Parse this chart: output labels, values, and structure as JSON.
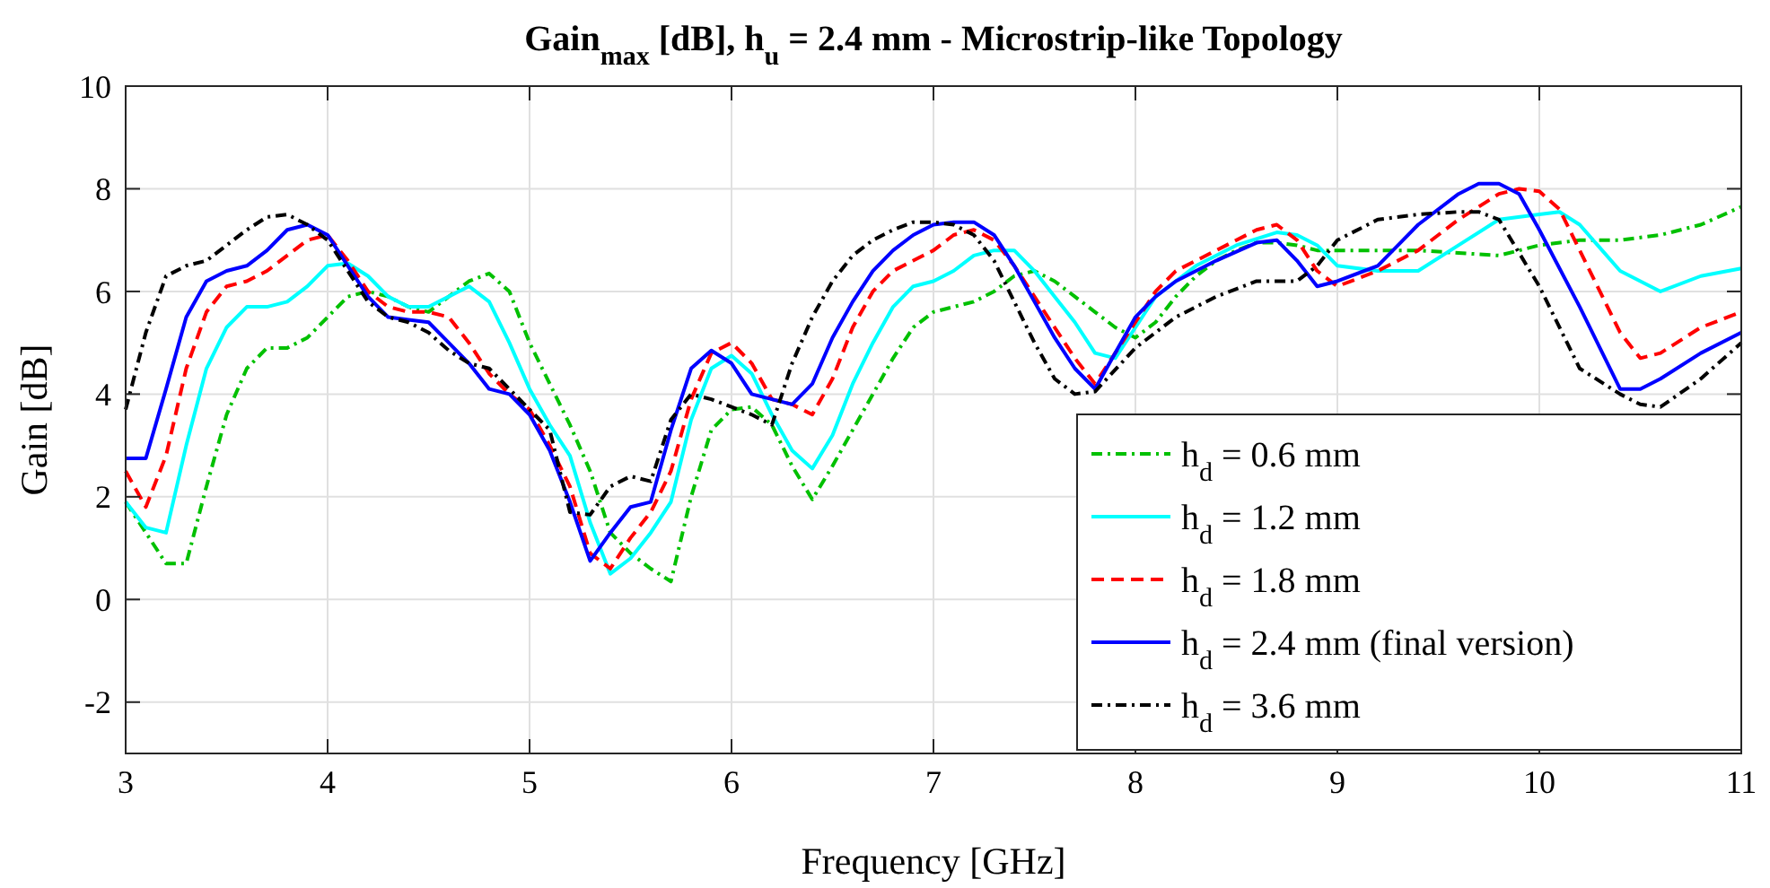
{
  "chart_data": {
    "type": "line",
    "title": "Gain$_{max}$ [dB], h$_{u}$ = 2.4 mm - Microstrip-like Topology",
    "xlabel": "Frequency [GHz]",
    "ylabel": "Gain [dB]",
    "xlim": [
      3,
      11
    ],
    "xticks": [
      3,
      4,
      5,
      6,
      7,
      8,
      9,
      10,
      11
    ],
    "ylim": [
      -3,
      10
    ],
    "yticks": [
      -2,
      0,
      2,
      4,
      6,
      8,
      10
    ],
    "grid": true,
    "legend": "bottom right",
    "marker": "none",
    "series": [
      {
        "name": "h$_{d}$ = 0.6 mm",
        "color": "#00c000",
        "line_style": "dashdot",
        "x": [
          3.0,
          3.1,
          3.2,
          3.3,
          3.4,
          3.5,
          3.6,
          3.7,
          3.8,
          3.9,
          4.0,
          4.1,
          4.2,
          4.3,
          4.4,
          4.5,
          4.6,
          4.7,
          4.8,
          4.9,
          5.0,
          5.1,
          5.2,
          5.3,
          5.4,
          5.5,
          5.6,
          5.7,
          5.8,
          5.9,
          6.0,
          6.1,
          6.2,
          6.3,
          6.4,
          6.5,
          6.6,
          6.7,
          6.8,
          6.9,
          7.0,
          7.1,
          7.2,
          7.3,
          7.4,
          7.5,
          7.6,
          7.7,
          7.8,
          7.9,
          8.0,
          8.1,
          8.2,
          8.3,
          8.4,
          8.5,
          8.6,
          8.7,
          8.8,
          8.9,
          9.0,
          9.2,
          9.4,
          9.6,
          9.8,
          10.0,
          10.2,
          10.4,
          10.6,
          10.8,
          11.0
        ],
        "values": [
          1.9,
          1.3,
          0.7,
          0.7,
          2.2,
          3.6,
          4.5,
          4.9,
          4.9,
          5.1,
          5.5,
          5.9,
          6.0,
          5.9,
          5.7,
          5.6,
          5.9,
          6.2,
          6.35,
          6.0,
          5.0,
          4.2,
          3.4,
          2.5,
          1.3,
          0.9,
          0.6,
          0.35,
          2.0,
          3.3,
          3.7,
          3.75,
          3.4,
          2.6,
          1.95,
          2.6,
          3.3,
          4.0,
          4.7,
          5.3,
          5.6,
          5.7,
          5.8,
          6.0,
          6.3,
          6.4,
          6.2,
          5.9,
          5.6,
          5.3,
          5.1,
          5.4,
          5.9,
          6.3,
          6.6,
          6.8,
          6.95,
          6.95,
          6.9,
          6.8,
          6.8,
          6.8,
          6.8,
          6.75,
          6.7,
          6.9,
          7.0,
          7.0,
          7.1,
          7.3,
          7.65
        ]
      },
      {
        "name": "h$_{d}$ = 1.2 mm",
        "color": "#00ffff",
        "line_style": "solid",
        "x": [
          3.0,
          3.1,
          3.2,
          3.3,
          3.4,
          3.5,
          3.6,
          3.7,
          3.8,
          3.9,
          4.0,
          4.1,
          4.2,
          4.3,
          4.4,
          4.5,
          4.6,
          4.7,
          4.8,
          4.9,
          5.0,
          5.1,
          5.2,
          5.3,
          5.4,
          5.5,
          5.6,
          5.7,
          5.8,
          5.9,
          6.0,
          6.1,
          6.2,
          6.3,
          6.4,
          6.5,
          6.6,
          6.7,
          6.8,
          6.9,
          7.0,
          7.1,
          7.2,
          7.3,
          7.4,
          7.5,
          7.6,
          7.7,
          7.8,
          7.9,
          8.0,
          8.1,
          8.3,
          8.5,
          8.7,
          8.8,
          8.9,
          9.0,
          9.2,
          9.4,
          9.6,
          9.8,
          10.0,
          10.1,
          10.2,
          10.4,
          10.6,
          10.8,
          11.0
        ],
        "values": [
          1.9,
          1.4,
          1.3,
          3.0,
          4.5,
          5.3,
          5.7,
          5.7,
          5.8,
          6.1,
          6.5,
          6.55,
          6.3,
          5.9,
          5.7,
          5.7,
          5.9,
          6.1,
          5.8,
          5.0,
          4.1,
          3.4,
          2.8,
          1.5,
          0.5,
          0.8,
          1.3,
          1.9,
          3.5,
          4.5,
          4.75,
          4.4,
          3.6,
          2.9,
          2.55,
          3.2,
          4.2,
          5.0,
          5.7,
          6.1,
          6.2,
          6.4,
          6.7,
          6.8,
          6.8,
          6.4,
          5.9,
          5.4,
          4.8,
          4.7,
          5.3,
          5.9,
          6.5,
          6.9,
          7.15,
          7.1,
          6.9,
          6.5,
          6.4,
          6.4,
          6.9,
          7.4,
          7.5,
          7.55,
          7.3,
          6.4,
          6.0,
          6.3,
          6.45
        ]
      },
      {
        "name": "h$_{d}$ = 1.8 mm",
        "color": "#ff0000",
        "line_style": "dashed",
        "x": [
          3.0,
          3.1,
          3.2,
          3.3,
          3.4,
          3.5,
          3.6,
          3.7,
          3.8,
          3.9,
          4.0,
          4.1,
          4.2,
          4.3,
          4.4,
          4.5,
          4.6,
          4.7,
          4.8,
          4.9,
          5.0,
          5.1,
          5.2,
          5.3,
          5.4,
          5.5,
          5.6,
          5.7,
          5.8,
          5.9,
          6.0,
          6.1,
          6.2,
          6.3,
          6.4,
          6.5,
          6.6,
          6.7,
          6.8,
          6.9,
          7.0,
          7.1,
          7.2,
          7.3,
          7.4,
          7.5,
          7.6,
          7.7,
          7.8,
          7.9,
          8.0,
          8.1,
          8.2,
          8.4,
          8.6,
          8.7,
          8.8,
          8.9,
          9.0,
          9.2,
          9.4,
          9.6,
          9.8,
          9.9,
          10.0,
          10.1,
          10.2,
          10.4,
          10.5,
          10.6,
          10.8,
          11.0
        ],
        "values": [
          2.5,
          1.8,
          2.8,
          4.5,
          5.6,
          6.1,
          6.2,
          6.4,
          6.7,
          7.0,
          7.1,
          6.6,
          6.0,
          5.7,
          5.6,
          5.6,
          5.5,
          5.0,
          4.4,
          4.0,
          3.7,
          3.0,
          2.2,
          0.9,
          0.6,
          1.2,
          1.7,
          2.5,
          3.9,
          4.8,
          5.0,
          4.6,
          3.9,
          3.8,
          3.6,
          4.3,
          5.3,
          6.0,
          6.4,
          6.6,
          6.8,
          7.1,
          7.2,
          7.0,
          6.5,
          5.9,
          5.3,
          4.7,
          4.2,
          4.8,
          5.4,
          6.0,
          6.4,
          6.8,
          7.2,
          7.3,
          7.0,
          6.4,
          6.1,
          6.4,
          6.8,
          7.4,
          7.9,
          8.0,
          7.95,
          7.6,
          6.8,
          5.2,
          4.7,
          4.8,
          5.3,
          5.6
        ]
      },
      {
        "name": "h$_{d}$ = 2.4 mm (final version)",
        "color": "#0000ff",
        "line_style": "solid",
        "x": [
          3.0,
          3.1,
          3.2,
          3.3,
          3.4,
          3.5,
          3.6,
          3.7,
          3.8,
          3.9,
          4.0,
          4.1,
          4.2,
          4.3,
          4.4,
          4.5,
          4.6,
          4.7,
          4.8,
          4.9,
          5.0,
          5.1,
          5.2,
          5.3,
          5.4,
          5.5,
          5.6,
          5.7,
          5.8,
          5.9,
          6.0,
          6.1,
          6.2,
          6.3,
          6.4,
          6.5,
          6.6,
          6.7,
          6.8,
          6.9,
          7.0,
          7.1,
          7.2,
          7.3,
          7.4,
          7.5,
          7.6,
          7.7,
          7.8,
          7.9,
          8.0,
          8.1,
          8.2,
          8.4,
          8.6,
          8.7,
          8.8,
          8.9,
          9.0,
          9.2,
          9.4,
          9.6,
          9.7,
          9.8,
          9.9,
          10.0,
          10.2,
          10.4,
          10.5,
          10.6,
          10.8,
          11.0
        ],
        "values": [
          2.75,
          2.75,
          4.1,
          5.5,
          6.2,
          6.4,
          6.5,
          6.8,
          7.2,
          7.3,
          7.1,
          6.5,
          5.9,
          5.5,
          5.45,
          5.4,
          5.0,
          4.6,
          4.1,
          4.0,
          3.6,
          2.9,
          1.9,
          0.75,
          1.3,
          1.8,
          1.9,
          3.3,
          4.5,
          4.85,
          4.6,
          4.0,
          3.9,
          3.8,
          4.2,
          5.1,
          5.8,
          6.4,
          6.8,
          7.1,
          7.3,
          7.35,
          7.35,
          7.1,
          6.5,
          5.8,
          5.1,
          4.5,
          4.1,
          4.8,
          5.5,
          5.9,
          6.2,
          6.6,
          6.95,
          7.0,
          6.6,
          6.1,
          6.2,
          6.5,
          7.3,
          7.9,
          8.1,
          8.1,
          7.9,
          7.2,
          5.7,
          4.1,
          4.1,
          4.3,
          4.8,
          5.2
        ]
      },
      {
        "name": "h$_{d}$ = 3.6 mm",
        "color": "#000000",
        "line_style": "dashdot",
        "x": [
          3.0,
          3.1,
          3.2,
          3.3,
          3.4,
          3.5,
          3.6,
          3.7,
          3.8,
          3.9,
          4.0,
          4.1,
          4.2,
          4.3,
          4.4,
          4.5,
          4.6,
          4.7,
          4.8,
          4.9,
          5.0,
          5.1,
          5.2,
          5.3,
          5.4,
          5.5,
          5.6,
          5.7,
          5.8,
          5.9,
          6.0,
          6.1,
          6.2,
          6.3,
          6.4,
          6.5,
          6.6,
          6.7,
          6.8,
          6.9,
          7.0,
          7.1,
          7.2,
          7.3,
          7.4,
          7.5,
          7.6,
          7.7,
          7.8,
          8.0,
          8.2,
          8.4,
          8.6,
          8.8,
          8.9,
          9.0,
          9.2,
          9.4,
          9.6,
          9.7,
          9.8,
          10.0,
          10.2,
          10.4,
          10.5,
          10.6,
          10.8,
          11.0
        ],
        "values": [
          3.7,
          5.2,
          6.3,
          6.5,
          6.6,
          6.9,
          7.2,
          7.45,
          7.5,
          7.3,
          7.0,
          6.4,
          5.8,
          5.5,
          5.4,
          5.2,
          4.85,
          4.6,
          4.5,
          4.1,
          3.7,
          3.3,
          1.7,
          1.65,
          2.2,
          2.4,
          2.3,
          3.5,
          4.0,
          3.9,
          3.75,
          3.6,
          3.4,
          4.6,
          5.5,
          6.2,
          6.7,
          7.0,
          7.2,
          7.35,
          7.35,
          7.3,
          7.1,
          6.6,
          5.8,
          5.0,
          4.3,
          4.0,
          4.05,
          4.9,
          5.5,
          5.9,
          6.2,
          6.2,
          6.5,
          7.0,
          7.4,
          7.5,
          7.55,
          7.55,
          7.4,
          6.1,
          4.5,
          4.0,
          3.8,
          3.75,
          4.3,
          5.0
        ]
      }
    ]
  }
}
